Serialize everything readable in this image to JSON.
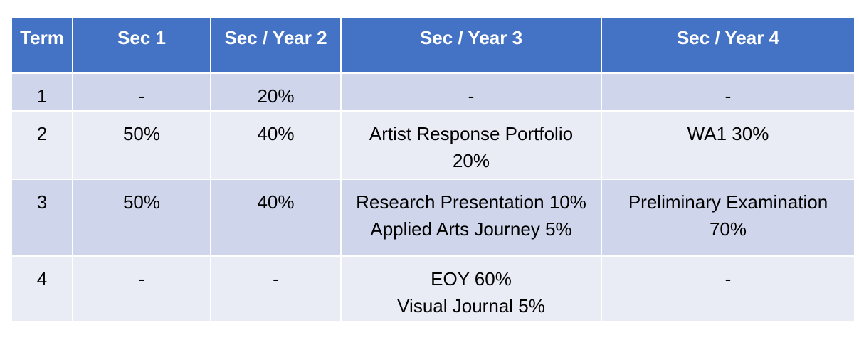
{
  "table": {
    "headers": [
      "Term",
      "Sec 1",
      "Sec / Year 2",
      "Sec / Year 3",
      "Sec / Year 4"
    ],
    "rows": [
      {
        "term": "1",
        "sec1": "-",
        "year2": "20%",
        "year3": [
          "-"
        ],
        "year4": [
          "-"
        ]
      },
      {
        "term": "2",
        "sec1": "50%",
        "year2": "40%",
        "year3": [
          "Artist Response Portfolio",
          "20%"
        ],
        "year4": [
          "WA1 30%"
        ]
      },
      {
        "term": "3",
        "sec1": "50%",
        "year2": "40%",
        "year3": [
          "Research Presentation 10%",
          "Applied Arts Journey 5%"
        ],
        "year4": [
          "Preliminary Examination",
          "70%"
        ]
      },
      {
        "term": "4",
        "sec1": "-",
        "year2": "-",
        "year3": [
          "EOY 60%",
          "Visual Journal 5%"
        ],
        "year4": [
          "-"
        ]
      }
    ]
  },
  "colors": {
    "header_bg": "#4472c4",
    "row_dark": "#cfd5ea",
    "row_light": "#e9ebf5"
  }
}
